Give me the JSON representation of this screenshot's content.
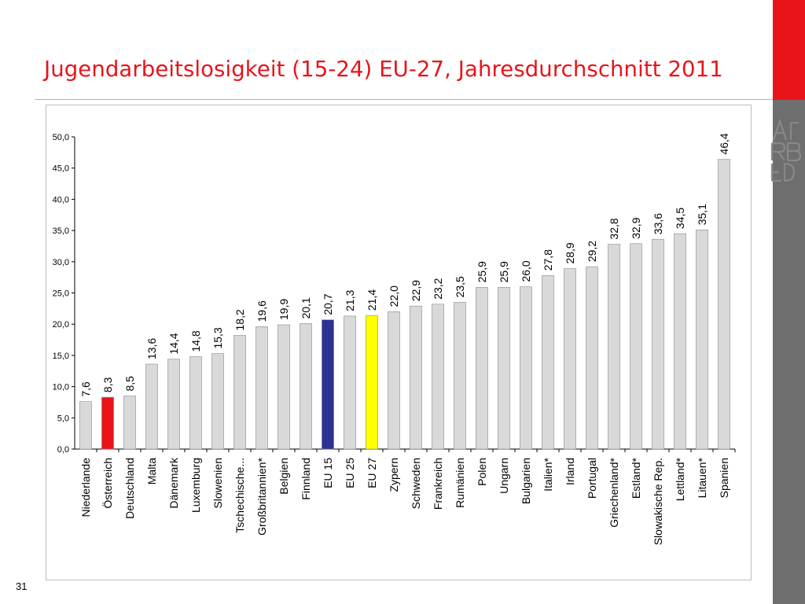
{
  "slide": {
    "title": "Jugendarbeitslosigkeit (15-24) EU-27, Jahresdurchschnitt 2011",
    "page_number": "31",
    "logo_text": "FORBA"
  },
  "colors": {
    "title": "#e8141a",
    "bar_default": "#d9d9d9",
    "bar_austria": "#e8141a",
    "bar_eu15": "#2e3192",
    "bar_eu27": "#ffff00",
    "side_bar": "#6e6e6e"
  },
  "chart_data": {
    "type": "bar",
    "title": "",
    "xlabel": "",
    "ylabel": "",
    "ylim": [
      0,
      50
    ],
    "ytick_labels": [
      "0,0",
      "5,0",
      "10,0",
      "15,0",
      "20,0",
      "25,0",
      "30,0",
      "35,0",
      "40,0",
      "45,0",
      "50,0"
    ],
    "grid": false,
    "categories": [
      "Niederlande",
      "Österreich",
      "Deutschland",
      "Malta",
      "Dänemark",
      "Luxemburg",
      "Slowenien",
      "Tschechische...",
      "Großbritannien*",
      "Belgien",
      "Finnland",
      "EU 15",
      "EU 25",
      "EU 27",
      "Zypern",
      "Schweden",
      "Frankreich",
      "Rumänien",
      "Polen",
      "Ungarn",
      "Bulgarien",
      "Italien*",
      "Irland",
      "Portugal",
      "Griechenland*",
      "Estland*",
      "Slowakische Rep.",
      "Lettland*",
      "Litauen*",
      "Spanien"
    ],
    "values": [
      7.6,
      8.3,
      8.5,
      13.6,
      14.4,
      14.8,
      15.3,
      18.2,
      19.6,
      19.9,
      20.1,
      20.7,
      21.3,
      21.4,
      22.0,
      22.9,
      23.2,
      23.5,
      25.9,
      25.9,
      26.0,
      27.8,
      28.9,
      29.2,
      32.8,
      32.9,
      33.6,
      34.5,
      35.1,
      46.4
    ],
    "value_labels": [
      "7,6",
      "8,3",
      "8,5",
      "13,6",
      "14,4",
      "14,8",
      "15,3",
      "18,2",
      "19,6",
      "19,9",
      "20,1",
      "20,7",
      "21,3",
      "21,4",
      "22,0",
      "22,9",
      "23,2",
      "23,5",
      "25,9",
      "25,9",
      "26,0",
      "27,8",
      "28,9",
      "29,2",
      "32,8",
      "32,9",
      "33,6",
      "34,5",
      "35,1",
      "46,4"
    ],
    "highlight": {
      "Österreich": "#e8141a",
      "EU 15": "#2e3192",
      "EU 27": "#ffff00"
    }
  }
}
